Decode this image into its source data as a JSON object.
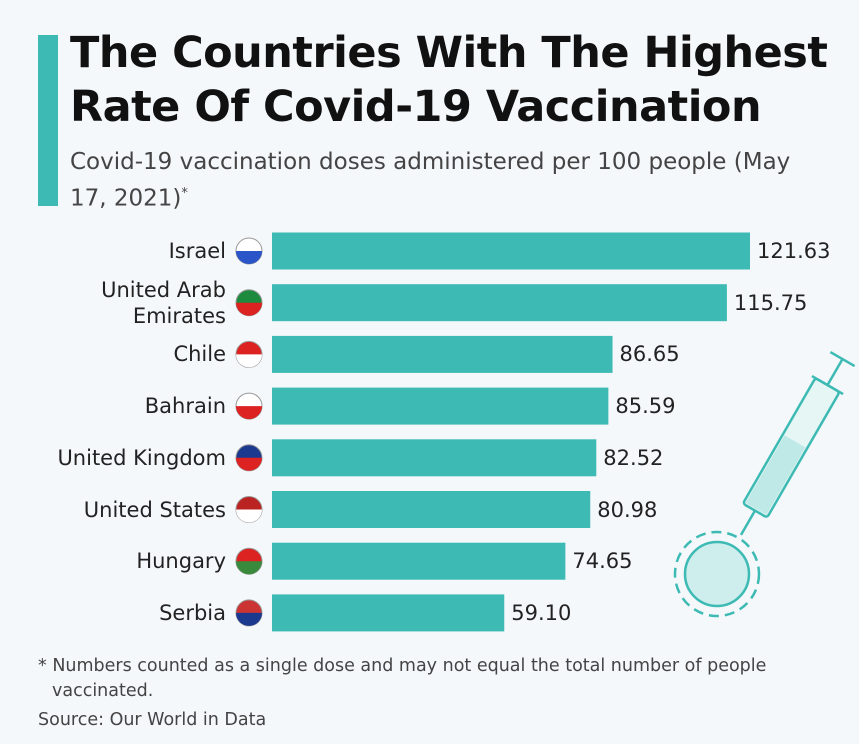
{
  "chart_data": {
    "type": "bar",
    "orientation": "horizontal",
    "title": "The Countries With The Highest Rate Of Covid-19 Vaccination",
    "subtitle": "Covid-19 vaccination doses administered per 100 people (May 17, 2021)",
    "subtitle_marker": "*",
    "categories": [
      "Israel",
      "United Arab Emirates",
      "Chile",
      "Bahrain",
      "United Kingdom",
      "United States",
      "Hungary",
      "Serbia"
    ],
    "values": [
      121.63,
      115.75,
      86.65,
      85.59,
      82.52,
      80.98,
      74.65,
      59.1
    ],
    "value_labels": [
      "121.63",
      "115.75",
      "86.65",
      "85.59",
      "82.52",
      "80.98",
      "74.65",
      "59.10"
    ],
    "color": "#3dbab3",
    "footnote": "* Numbers counted as a single dose and may not equal the total number of people vaccinated.",
    "source": "Source: Our World in Data"
  }
}
